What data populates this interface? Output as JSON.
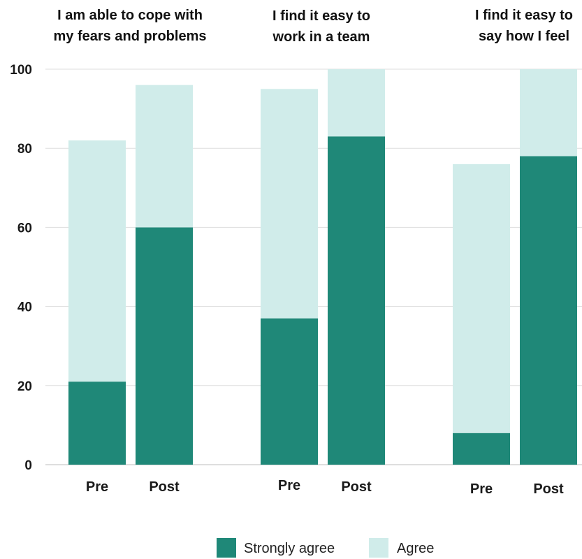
{
  "chart_data": {
    "type": "bar",
    "stacked": true,
    "groups": [
      {
        "title_lines": [
          "I am able to cope with",
          "my fears and problems"
        ],
        "categories": [
          "Pre",
          "Post"
        ]
      },
      {
        "title_lines": [
          "I find it easy to",
          "work in a team"
        ],
        "categories": [
          "Pre",
          "Post"
        ]
      },
      {
        "title_lines": [
          "I find it easy to",
          "say how I feel"
        ],
        "categories": [
          "Pre",
          "Post"
        ]
      }
    ],
    "series": [
      {
        "name": "Strongly agree",
        "color": "#1f8878",
        "values": [
          21,
          60,
          37,
          83,
          8,
          78
        ]
      },
      {
        "name": "Agree",
        "color": "#d0ecea",
        "values": [
          61,
          36,
          58,
          17,
          68,
          22
        ]
      }
    ],
    "ylim": [
      0,
      100
    ],
    "yticks": [
      "0",
      "20",
      "40",
      "60",
      "80",
      "100"
    ],
    "grid": true,
    "legend_position": "bottom"
  }
}
